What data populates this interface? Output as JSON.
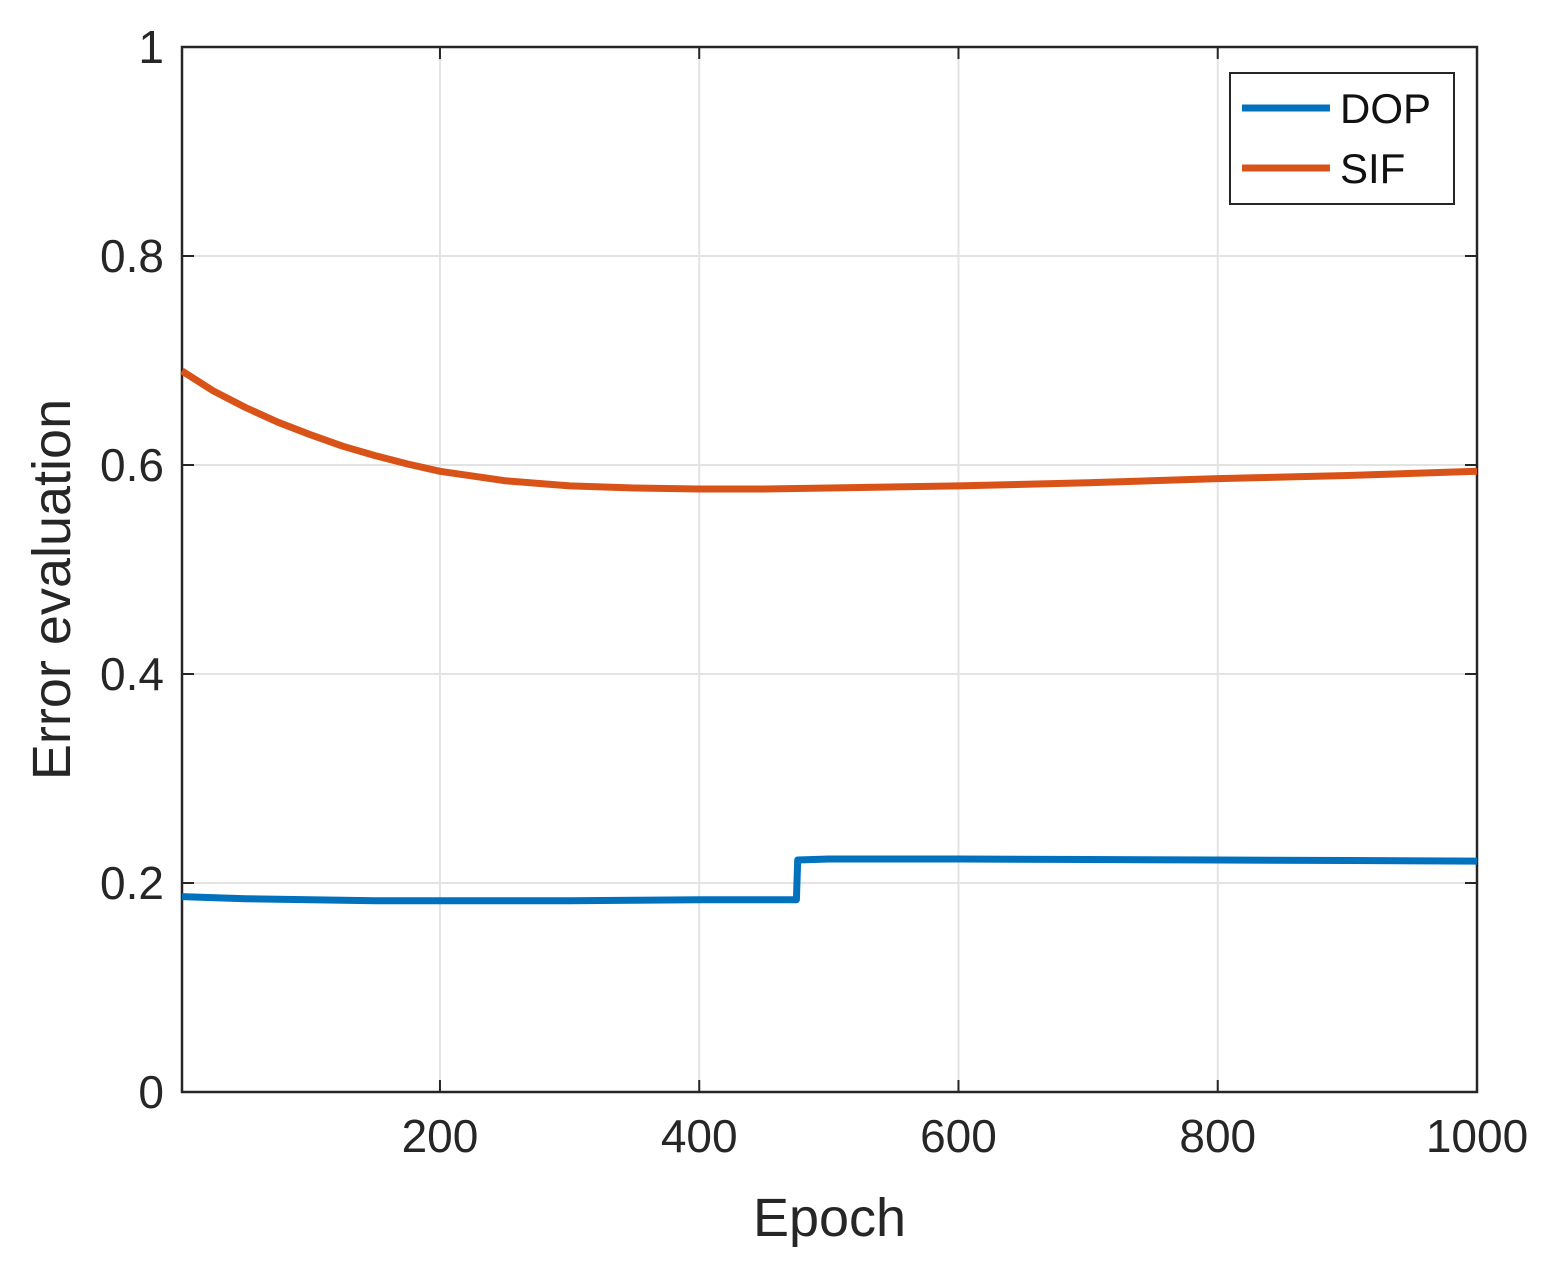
{
  "chart_data": {
    "type": "line",
    "title": "",
    "xlabel": "Epoch",
    "ylabel": "Error evaluation",
    "xlim": [
      1,
      1000
    ],
    "ylim": [
      0,
      1
    ],
    "xticks": [
      200,
      400,
      600,
      800,
      1000
    ],
    "yticks": [
      0,
      0.2,
      0.4,
      0.6,
      0.8,
      1
    ],
    "xtick_labels": [
      "200",
      "400",
      "600",
      "800",
      "1000"
    ],
    "ytick_labels": [
      "0",
      "0.2",
      "0.4",
      "0.6",
      "0.8",
      "1"
    ],
    "grid": true,
    "legend_position": "top-right",
    "series": [
      {
        "name": "DOP",
        "color": "#0072BD",
        "points": [
          [
            1,
            0.187
          ],
          [
            50,
            0.185
          ],
          [
            100,
            0.184
          ],
          [
            150,
            0.183
          ],
          [
            200,
            0.183
          ],
          [
            250,
            0.183
          ],
          [
            300,
            0.183
          ],
          [
            350,
            0.1835
          ],
          [
            400,
            0.184
          ],
          [
            450,
            0.184
          ],
          [
            475,
            0.184
          ],
          [
            476,
            0.222
          ],
          [
            500,
            0.223
          ],
          [
            600,
            0.223
          ],
          [
            700,
            0.2225
          ],
          [
            800,
            0.222
          ],
          [
            900,
            0.2215
          ],
          [
            1000,
            0.221
          ]
        ]
      },
      {
        "name": "SIF",
        "color": "#D95319",
        "points": [
          [
            1,
            0.69
          ],
          [
            25,
            0.671
          ],
          [
            50,
            0.655
          ],
          [
            75,
            0.641
          ],
          [
            100,
            0.629
          ],
          [
            125,
            0.618
          ],
          [
            150,
            0.609
          ],
          [
            175,
            0.601
          ],
          [
            200,
            0.594
          ],
          [
            250,
            0.585
          ],
          [
            300,
            0.58
          ],
          [
            350,
            0.578
          ],
          [
            400,
            0.577
          ],
          [
            450,
            0.577
          ],
          [
            500,
            0.578
          ],
          [
            600,
            0.58
          ],
          [
            700,
            0.583
          ],
          [
            800,
            0.587
          ],
          [
            900,
            0.59
          ],
          [
            1000,
            0.594
          ]
        ]
      }
    ]
  }
}
